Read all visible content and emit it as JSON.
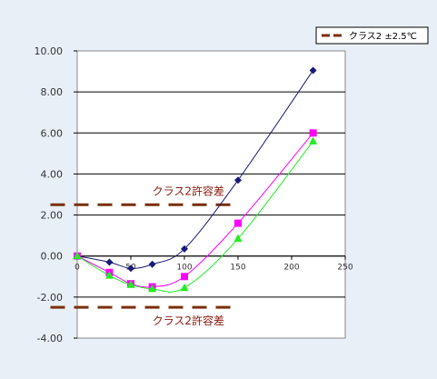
{
  "chart_data": {
    "type": "line",
    "title": "",
    "xlabel": "",
    "ylabel": "",
    "xlim": [
      0,
      250
    ],
    "ylim": [
      -4,
      10
    ],
    "grid": "horizontal",
    "legend_position": "top-right",
    "x_tick_labels": [
      "0",
      "50",
      "100",
      "150",
      "200",
      "250"
    ],
    "y_tick_labels": [
      "10.00",
      "8.00",
      "6.00",
      "4.00",
      "2.00",
      "0.00",
      "-2.00",
      "-4.00"
    ],
    "legend": [
      {
        "label": "クラス2 ±2.5℃",
        "color": "#7a2e0e",
        "style": "dashed"
      }
    ],
    "series": [
      {
        "color": "#1a1a7a",
        "marker": "diamond",
        "points": [
          [
            0,
            0.0
          ],
          [
            30,
            -0.3
          ],
          [
            50,
            -0.6
          ],
          [
            70,
            -0.4
          ],
          [
            100,
            0.35
          ],
          [
            150,
            3.7
          ],
          [
            220,
            9.05
          ]
        ]
      },
      {
        "color": "#ff00ff",
        "marker": "square",
        "points": [
          [
            0,
            0.0
          ],
          [
            30,
            -0.8
          ],
          [
            50,
            -1.35
          ],
          [
            70,
            -1.5
          ],
          [
            100,
            -1.0
          ],
          [
            150,
            1.6
          ],
          [
            220,
            6.0
          ]
        ]
      },
      {
        "color": "#22ee22",
        "marker": "triangle",
        "points": [
          [
            0,
            0.0
          ],
          [
            30,
            -0.95
          ],
          [
            50,
            -1.4
          ],
          [
            70,
            -1.6
          ],
          [
            100,
            -1.55
          ],
          [
            150,
            0.85
          ],
          [
            220,
            5.6
          ]
        ]
      }
    ],
    "tolerance_lines": [
      {
        "y": 2.5,
        "x_range": [
          -25,
          150
        ],
        "color": "#7a2e0e"
      },
      {
        "y": -2.5,
        "x_range": [
          -25,
          150
        ],
        "color": "#7a2e0e"
      }
    ],
    "annotations": [
      {
        "text": "クラス2許容差",
        "x": 70,
        "y": 3.15
      },
      {
        "text": "クラス2許容差",
        "x": 70,
        "y": -3.15
      }
    ]
  }
}
